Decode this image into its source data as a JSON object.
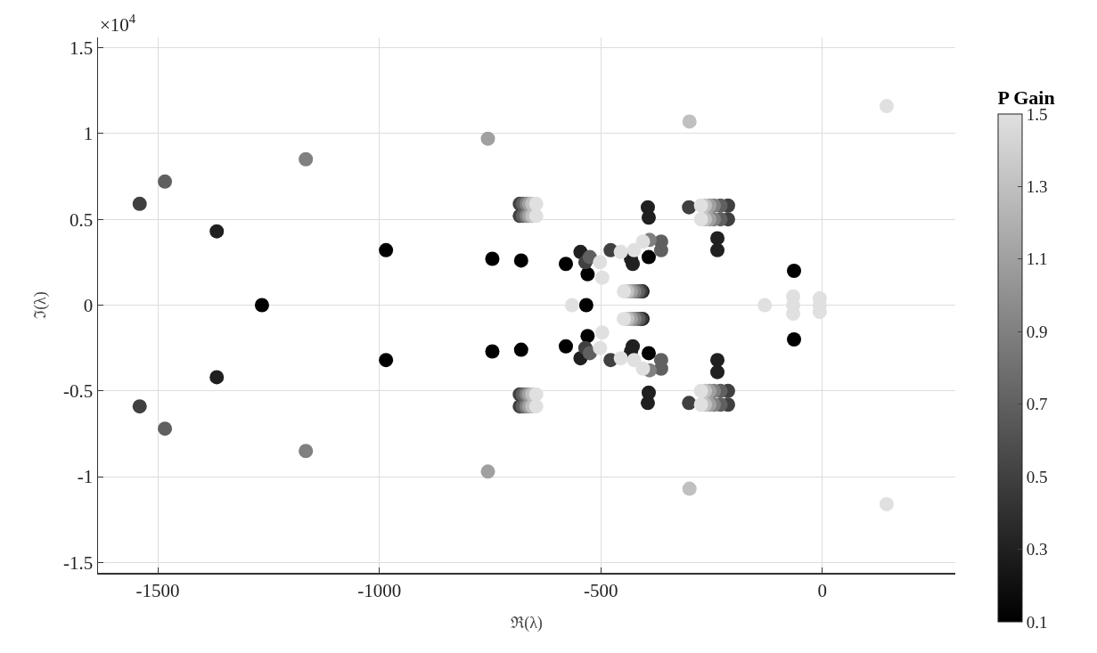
{
  "chart_data": {
    "type": "scatter",
    "xlabel": "ℜ(λ)",
    "ylabel": "ℑ(λ)",
    "clabel": "P Gain",
    "annotations": [
      "×10$^{4}$"
    ],
    "xlim": [
      -1635,
      300
    ],
    "xticks": [
      -1500,
      -1000,
      -500,
      0
    ],
    "ylim": [
      -1.56,
      1.56
    ],
    "yticks": [
      -1.5,
      -1,
      -0.5,
      0,
      0.5,
      1,
      1.5
    ],
    "clim": [
      0.1,
      1.5
    ],
    "cticks": [
      0.1,
      0.3,
      0.5,
      0.7,
      0.9,
      1.1,
      1.3,
      1.5
    ],
    "grid": true,
    "marker": "circle",
    "x": [
      -1541,
      -1541,
      -1484,
      -1484,
      -1367,
      -1367,
      -1265,
      -1166,
      -1166,
      -985,
      -985,
      -755,
      -755,
      -745,
      -745,
      -680,
      -680,
      -683,
      -683,
      -683,
      -683,
      -676,
      -676,
      -676,
      -676,
      -668,
      -668,
      -668,
      -668,
      -662,
      -662,
      -662,
      -662,
      -655,
      -655,
      -655,
      -655,
      -646,
      -646,
      -646,
      -646,
      -394,
      -394,
      -392,
      -392,
      -579,
      -579,
      -546,
      -546,
      -530,
      -530,
      -533,
      -535,
      -535,
      -525,
      -525,
      -478,
      -478,
      -432,
      -432,
      -428,
      -428,
      -392,
      -392,
      -364,
      -364,
      -364,
      -364,
      -390,
      -390,
      -406,
      -406,
      -410,
      -410,
      -416,
      -416,
      -424,
      -424,
      -432,
      -432,
      -440,
      -440,
      -448,
      -448,
      -405,
      -405,
      -425,
      -425,
      -455,
      -455,
      -502,
      -502,
      -497,
      -497,
      -565,
      -301,
      -301,
      -213,
      -213,
      -213,
      -213,
      -230,
      -230,
      -230,
      -230,
      -245,
      -245,
      -245,
      -245,
      -255,
      -255,
      -255,
      -255,
      -265,
      -265,
      -265,
      -265,
      -274,
      -274,
      -274,
      -274,
      -237,
      -237,
      -237,
      -237,
      -64,
      -64,
      -300,
      -300,
      145,
      145,
      -130,
      -66,
      -66,
      -66,
      -6,
      -6,
      -6
    ],
    "values": [
      0.59,
      -0.59,
      0.72,
      -0.72,
      0.43,
      -0.42,
      0,
      0.85,
      -0.85,
      0.32,
      -0.32,
      0.97,
      -0.97,
      0.27,
      -0.27,
      0.26,
      -0.26,
      0.59,
      0.52,
      -0.52,
      -0.59,
      0.59,
      0.52,
      -0.52,
      -0.59,
      0.59,
      0.52,
      -0.52,
      -0.59,
      0.59,
      0.52,
      -0.52,
      -0.59,
      0.59,
      0.52,
      -0.52,
      -0.59,
      0.59,
      0.52,
      -0.52,
      -0.59,
      0.57,
      -0.57,
      0.51,
      -0.51,
      0.24,
      -0.24,
      0.31,
      -0.31,
      0.18,
      -0.18,
      0,
      0.25,
      -0.25,
      0.28,
      -0.28,
      0.32,
      -0.32,
      0.27,
      -0.27,
      0.24,
      -0.24,
      0.28,
      -0.28,
      0.37,
      -0.37,
      0.32,
      -0.32,
      0.38,
      -0.38,
      0.08,
      -0.08,
      0.08,
      -0.08,
      0.08,
      -0.08,
      0.08,
      -0.08,
      0.08,
      -0.08,
      0.08,
      -0.08,
      0.08,
      -0.08,
      0.37,
      -0.37,
      0.32,
      -0.32,
      0.31,
      -0.31,
      0.25,
      -0.25,
      0.16,
      -0.16,
      0,
      0.57,
      -0.57,
      0.58,
      0.5,
      -0.5,
      -0.58,
      0.58,
      0.5,
      -0.5,
      -0.58,
      0.58,
      0.5,
      -0.5,
      -0.58,
      0.58,
      0.5,
      -0.5,
      -0.58,
      0.58,
      0.5,
      -0.5,
      -0.58,
      0.58,
      0.5,
      -0.5,
      -0.58,
      0.39,
      0.32,
      -0.32,
      -0.39,
      0.2,
      -0.2,
      1.07,
      -1.07,
      1.16,
      -1.16,
      0,
      0,
      0.05,
      -0.05,
      0,
      0.04,
      -0.04
    ],
    "cvalues": [
      0.5,
      0.5,
      0.7,
      0.7,
      0.3,
      0.3,
      0.1,
      0.9,
      0.9,
      0.1,
      0.1,
      1.1,
      1.1,
      0.1,
      0.1,
      0.1,
      0.1,
      0.5,
      0.5,
      0.5,
      0.5,
      0.7,
      0.7,
      0.7,
      0.7,
      0.9,
      0.9,
      0.9,
      0.9,
      1.1,
      1.1,
      1.1,
      1.1,
      1.3,
      1.3,
      1.3,
      1.3,
      1.5,
      1.5,
      1.5,
      1.5,
      0.3,
      0.3,
      0.3,
      0.3,
      0.1,
      0.1,
      0.3,
      0.3,
      0.1,
      0.1,
      0.1,
      0.5,
      0.5,
      0.7,
      0.7,
      0.5,
      0.5,
      0.3,
      0.3,
      0.3,
      0.3,
      0.1,
      0.1,
      0.7,
      0.7,
      0.7,
      0.7,
      0.9,
      0.9,
      0.3,
      0.3,
      0.5,
      0.5,
      0.7,
      0.7,
      0.9,
      0.9,
      1.1,
      1.1,
      1.3,
      1.3,
      1.5,
      1.5,
      1.5,
      1.5,
      1.5,
      1.5,
      1.5,
      1.5,
      1.5,
      1.5,
      1.5,
      1.5,
      1.5,
      0.5,
      0.5,
      0.5,
      0.5,
      0.5,
      0.5,
      0.7,
      0.7,
      0.7,
      0.7,
      0.9,
      0.9,
      0.9,
      0.9,
      1.1,
      1.1,
      1.1,
      1.1,
      1.3,
      1.3,
      1.3,
      1.3,
      1.5,
      1.5,
      1.5,
      1.5,
      0.3,
      0.3,
      0.3,
      0.3,
      0.1,
      0.1,
      1.3,
      1.3,
      1.5,
      1.5,
      1.5,
      1.5,
      1.5,
      1.5,
      1.5,
      1.5,
      1.5
    ]
  }
}
